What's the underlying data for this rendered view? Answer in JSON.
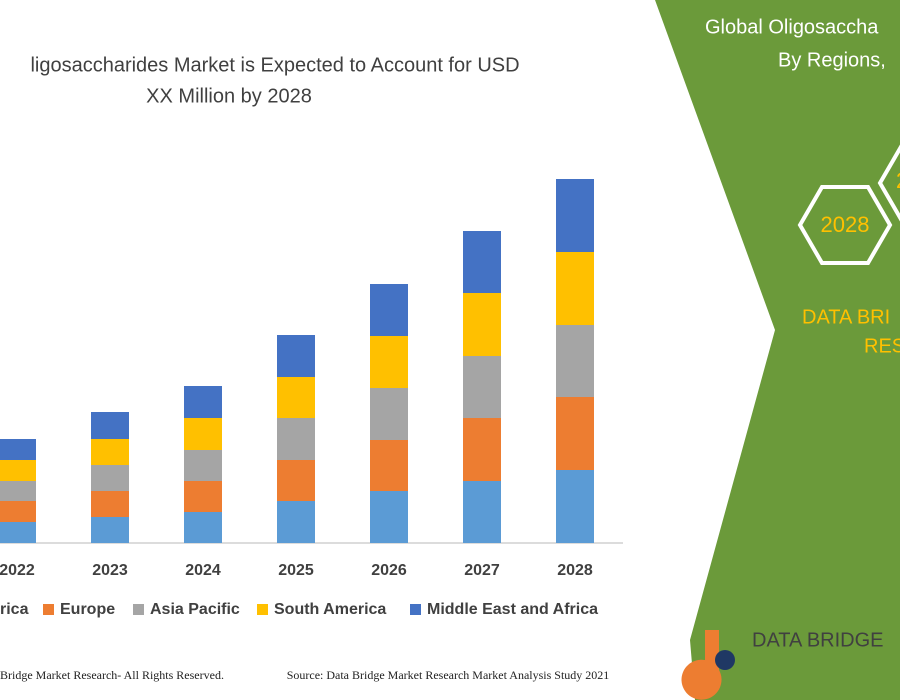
{
  "chart_data": {
    "type": "stacked_bar",
    "title_lines": [
      "ligosaccharides Market is Expected to Account for USD",
      "XX Million by 2028"
    ],
    "categories": [
      "2022",
      "2023",
      "2024",
      "2025",
      "2026",
      "2027",
      "2028"
    ],
    "series": [
      {
        "name": "rica",
        "color": "#5b9bd5",
        "values": [
          2.1,
          2.6,
          3.1,
          4.2,
          5.2,
          6.2,
          7.3
        ]
      },
      {
        "name": "Europe",
        "color": "#ed7d31",
        "values": [
          2.1,
          2.6,
          3.1,
          4.1,
          5.1,
          6.3,
          7.3
        ]
      },
      {
        "name": "Asia Pacific",
        "color": "#a5a5a5",
        "values": [
          2.0,
          2.6,
          3.1,
          4.2,
          5.2,
          6.2,
          7.2
        ]
      },
      {
        "name": "South America",
        "color": "#ffc000",
        "values": [
          2.1,
          2.6,
          3.2,
          4.1,
          5.2,
          6.3,
          7.3
        ]
      },
      {
        "name": "Middle East and Africa",
        "color": "#4472c4",
        "values": [
          2.1,
          2.7,
          3.2,
          4.2,
          5.2,
          6.2,
          7.3
        ]
      }
    ]
  },
  "panel": {
    "title_lines": [
      "Global Oligosaccha",
      "By Regions,"
    ],
    "hexagons": [
      "2028",
      "2"
    ],
    "brand_lines": [
      "DATA BRI",
      "RES"
    ]
  },
  "logo": "DATA BRIDGE",
  "footer": {
    "left": "Bridge Market Research- All Rights Reserved.",
    "source": "Source: Data Bridge Market Research Market Analysis Study 2021"
  }
}
